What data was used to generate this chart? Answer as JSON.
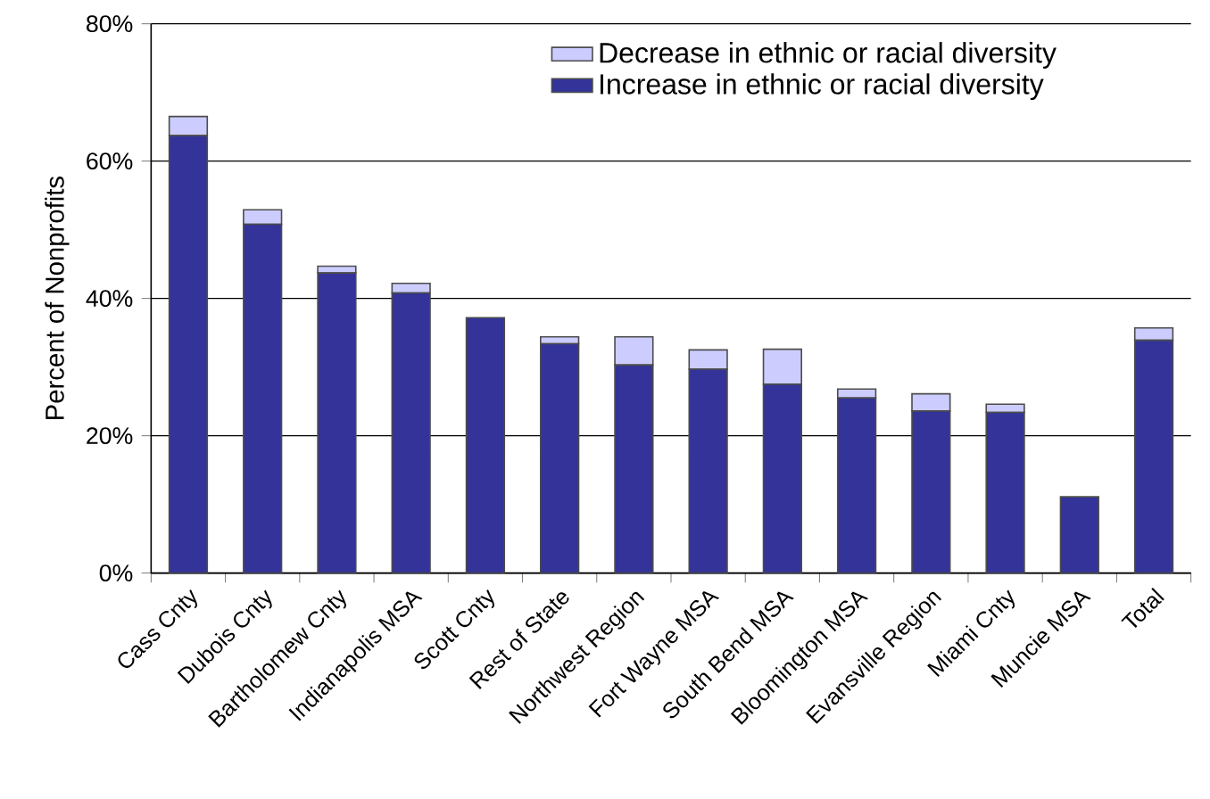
{
  "chart_data": {
    "type": "bar",
    "stacked": true,
    "ylabel": "Percent of Nonprofits",
    "categories": [
      "Cass Cnty",
      "Dubois Cnty",
      "Bartholomew Cnty",
      "Indianapolis MSA",
      "Scott Cnty",
      "Rest of State",
      "Northwest Region",
      "Fort Wayne MSA",
      "South Bend MSA",
      "Bloomington MSA",
      "Evansville Region",
      "Miami Cnty",
      "Muncie MSA",
      "Total"
    ],
    "series": [
      {
        "name": "Increase in ethnic or racial diversity",
        "color": "#333399",
        "values": [
          63.7,
          50.8,
          43.7,
          40.8,
          37.2,
          33.4,
          30.3,
          29.7,
          27.5,
          25.5,
          23.6,
          23.4,
          11.1,
          33.9
        ]
      },
      {
        "name": "Decrease in ethnic or racial diversity",
        "color": "#ccccff",
        "values": [
          2.8,
          2.1,
          1.0,
          1.4,
          0,
          1.0,
          4.1,
          2.8,
          5.1,
          1.3,
          2.5,
          1.2,
          0,
          1.8
        ]
      }
    ],
    "ylim": [
      0,
      80
    ],
    "yticks": [
      {
        "value": 0,
        "label": "0%"
      },
      {
        "value": 20,
        "label": "20%"
      },
      {
        "value": 40,
        "label": "40%"
      },
      {
        "value": 60,
        "label": "60%"
      },
      {
        "value": 80,
        "label": "80%"
      }
    ],
    "grid": "y",
    "legend": "top"
  }
}
